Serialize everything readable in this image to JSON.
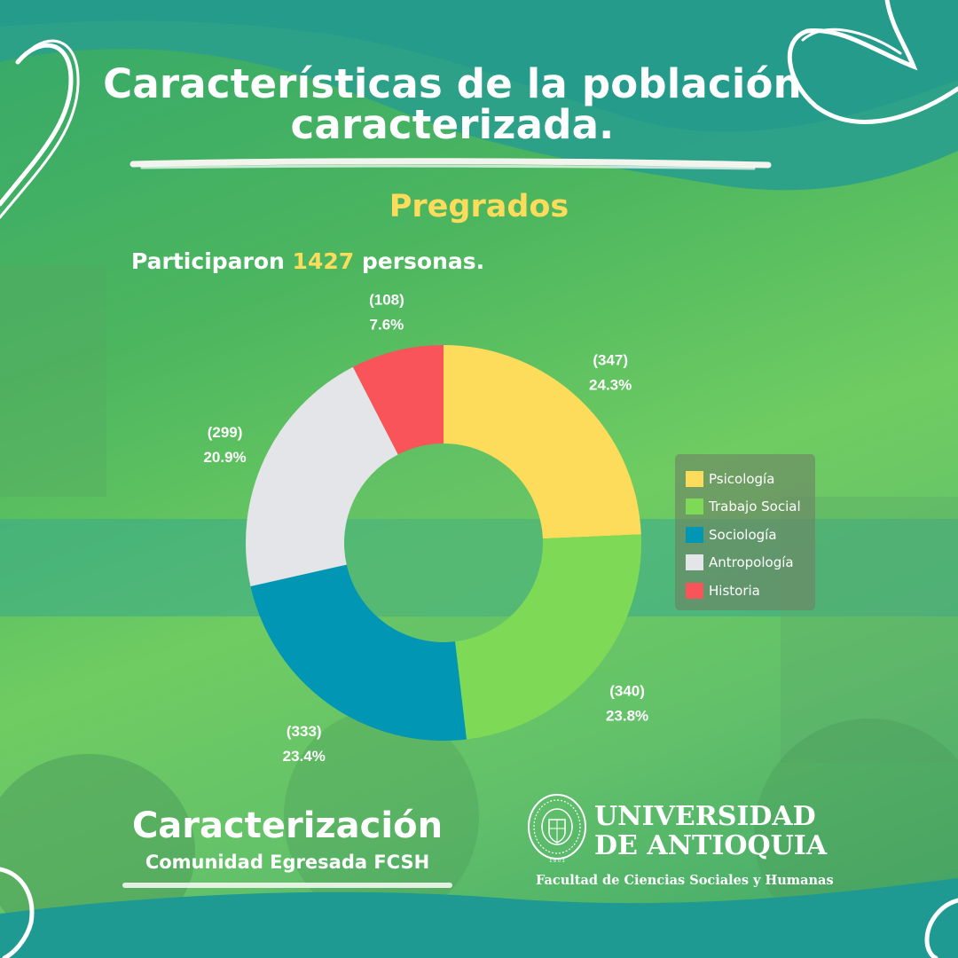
{
  "header": {
    "title_line1": "Características de la población",
    "title_line2": "caracterizada."
  },
  "subtitle": "Pregrados",
  "participants": {
    "prefix": "Participaron",
    "count": "1427",
    "suffix": "personas."
  },
  "chart_data": {
    "type": "pie",
    "title": "",
    "total": 1427,
    "series": [
      {
        "name": "Psicología",
        "value": 347,
        "percent": "24.3%",
        "count_label": "(347)",
        "color": "#fddc5c"
      },
      {
        "name": "Trabajo Social",
        "value": 340,
        "percent": "23.8%",
        "count_label": "(340)",
        "color": "#7ed957"
      },
      {
        "name": "Sociología",
        "value": 333,
        "percent": "23.4%",
        "count_label": "(333)",
        "color": "#0096b4"
      },
      {
        "name": "Antropología",
        "value": 299,
        "percent": "20.9%",
        "count_label": "(299)",
        "color": "#e3e5e8"
      },
      {
        "name": "Historia",
        "value": 108,
        "percent": "7.6%",
        "count_label": "(108)",
        "color": "#f8545a"
      }
    ],
    "legend_position": "right"
  },
  "footer": {
    "brand_title": "Caracterización",
    "brand_subtitle": "Comunidad Egresada FCSH",
    "university_line1": "UNIVERSIDAD",
    "university_line2": "DE ANTIOQUIA",
    "faculty": "Facultad de Ciencias Sociales y Humanas"
  }
}
